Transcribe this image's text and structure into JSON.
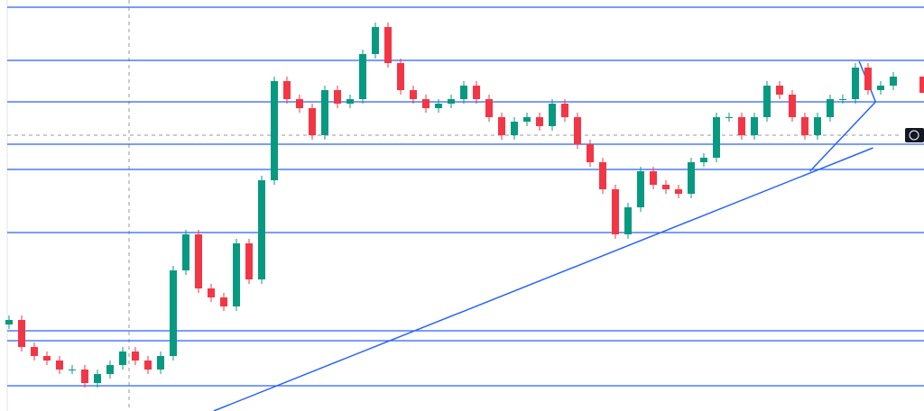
{
  "chart_data": {
    "type": "candlestick",
    "ylim": [
      0,
      456
    ],
    "xlim": [
      -0.714,
      72.43
    ],
    "up_color": "#089981",
    "down_color": "#f23645",
    "line_color": "#2962ff",
    "open": [
      96,
      101,
      71,
      61,
      56,
      46,
      46,
      31,
      41,
      51,
      66,
      56,
      46,
      61,
      156,
      196,
      136,
      126,
      116,
      186,
      146,
      256,
      366,
      346,
      336,
      306,
      356,
      341,
      346,
      396,
      426,
      386,
      356,
      346,
      336,
      341,
      346,
      361,
      346,
      326,
      306,
      321,
      326,
      316,
      341,
      326,
      296,
      276,
      246,
      196,
      226,
      266,
      251,
      246,
      241,
      276,
      281,
      326,
      326,
      306,
      326,
      361,
      351,
      326,
      306,
      326,
      346,
      346,
      381,
      356,
      361
    ],
    "high": [
      106,
      106,
      76,
      66,
      61,
      51,
      51,
      46,
      56,
      71,
      71,
      61,
      66,
      161,
      201,
      201,
      141,
      131,
      191,
      191,
      261,
      371,
      371,
      351,
      341,
      361,
      361,
      351,
      401,
      431,
      431,
      391,
      361,
      351,
      346,
      351,
      366,
      366,
      351,
      331,
      326,
      331,
      331,
      346,
      346,
      331,
      301,
      281,
      251,
      231,
      271,
      271,
      256,
      251,
      281,
      286,
      331,
      331,
      331,
      331,
      366,
      366,
      356,
      331,
      331,
      351,
      351,
      386,
      386,
      366,
      376
    ],
    "low": [
      91,
      66,
      56,
      51,
      41,
      41,
      26,
      26,
      36,
      46,
      51,
      41,
      41,
      56,
      151,
      131,
      121,
      111,
      111,
      141,
      141,
      251,
      341,
      331,
      301,
      301,
      336,
      336,
      341,
      391,
      381,
      351,
      341,
      331,
      331,
      336,
      341,
      341,
      321,
      301,
      301,
      316,
      311,
      311,
      321,
      291,
      271,
      241,
      191,
      191,
      221,
      246,
      241,
      236,
      236,
      271,
      276,
      321,
      301,
      301,
      321,
      346,
      321,
      301,
      301,
      321,
      341,
      341,
      351,
      351,
      356
    ],
    "close": [
      101,
      71,
      61,
      56,
      46,
      46,
      31,
      41,
      51,
      66,
      56,
      46,
      61,
      156,
      196,
      136,
      126,
      116,
      186,
      146,
      256,
      366,
      346,
      336,
      306,
      356,
      341,
      346,
      396,
      426,
      386,
      356,
      346,
      336,
      341,
      346,
      361,
      346,
      326,
      306,
      321,
      326,
      316,
      341,
      326,
      296,
      276,
      246,
      196,
      226,
      266,
      251,
      246,
      241,
      276,
      281,
      326,
      326,
      306,
      326,
      361,
      351,
      326,
      306,
      326,
      346,
      346,
      381,
      356,
      361,
      371
    ],
    "levels": [
      448,
      389,
      343,
      296,
      268,
      198,
      89,
      78,
      28
    ],
    "trendlines": [
      {
        "x": [
          16.2,
          68.4
        ],
        "y": [
          0,
          292
        ]
      },
      {
        "x": [
          63.4,
          68.6
        ],
        "y": [
          266,
          343
        ]
      },
      {
        "x": [
          67.3,
          68.6
        ],
        "y": [
          388,
          343
        ]
      }
    ]
  }
}
